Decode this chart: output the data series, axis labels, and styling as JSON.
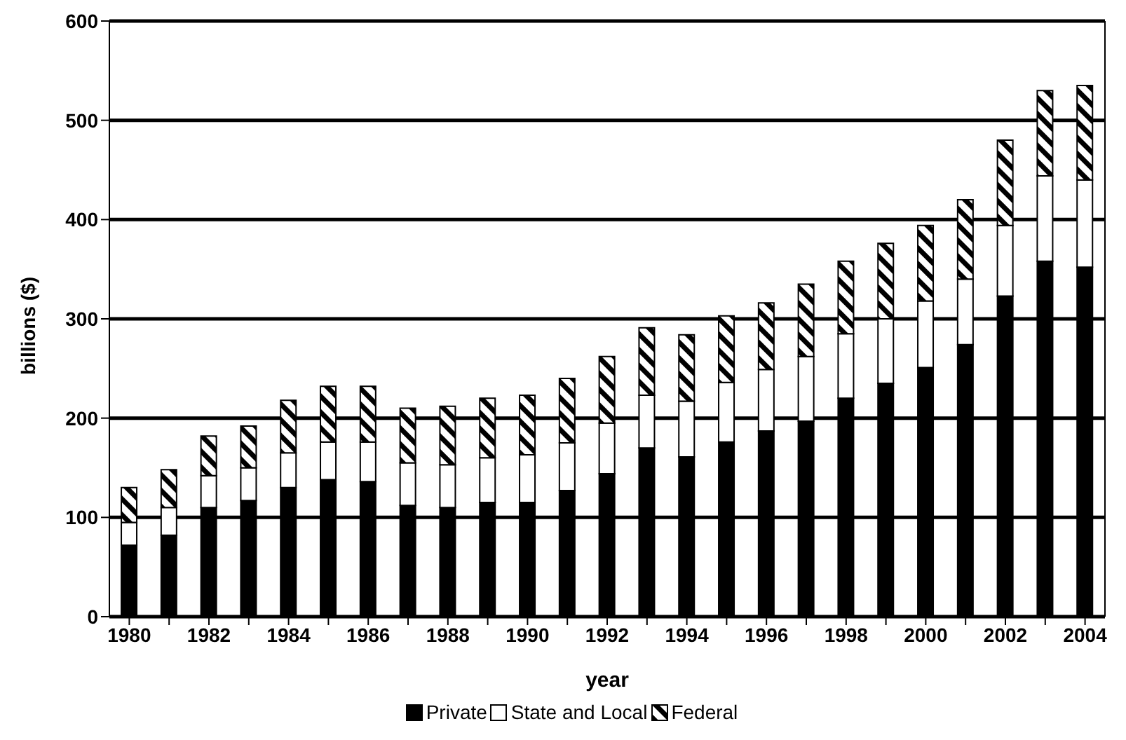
{
  "chart_data": {
    "type": "bar",
    "stacked": true,
    "xlabel": "year",
    "ylabel": "billions ($)",
    "categories": [
      "1980",
      null,
      "1982",
      null,
      "1984",
      null,
      "1986",
      null,
      "1988",
      null,
      "1990",
      null,
      "1992",
      null,
      "1994",
      null,
      "1996",
      null,
      "1998",
      null,
      "2000",
      null,
      "2002",
      null,
      "2004"
    ],
    "series": [
      {
        "name": "Private",
        "color": "#000000",
        "values": [
          72,
          82,
          110,
          117,
          130,
          138,
          136,
          112,
          110,
          115,
          115,
          127,
          144,
          170,
          161,
          176,
          187,
          197,
          220,
          235,
          251,
          274,
          323,
          358,
          352
        ]
      },
      {
        "name": "State and Local",
        "color": "#ffffff",
        "values": [
          23,
          28,
          32,
          33,
          35,
          38,
          40,
          43,
          43,
          45,
          48,
          48,
          51,
          53,
          56,
          60,
          62,
          65,
          65,
          65,
          67,
          66,
          71,
          86,
          88
        ]
      },
      {
        "name": "Federal",
        "color": "#000000",
        "values": [
          35,
          38,
          40,
          42,
          53,
          56,
          56,
          55,
          59,
          60,
          60,
          65,
          67,
          68,
          67,
          67,
          67,
          73,
          73,
          76,
          76,
          80,
          86,
          86,
          95
        ]
      }
    ],
    "ylim": [
      0,
      600
    ],
    "yticks": [
      0,
      100,
      200,
      300,
      400,
      500,
      600
    ],
    "grid": "y",
    "legend": "bottom"
  }
}
